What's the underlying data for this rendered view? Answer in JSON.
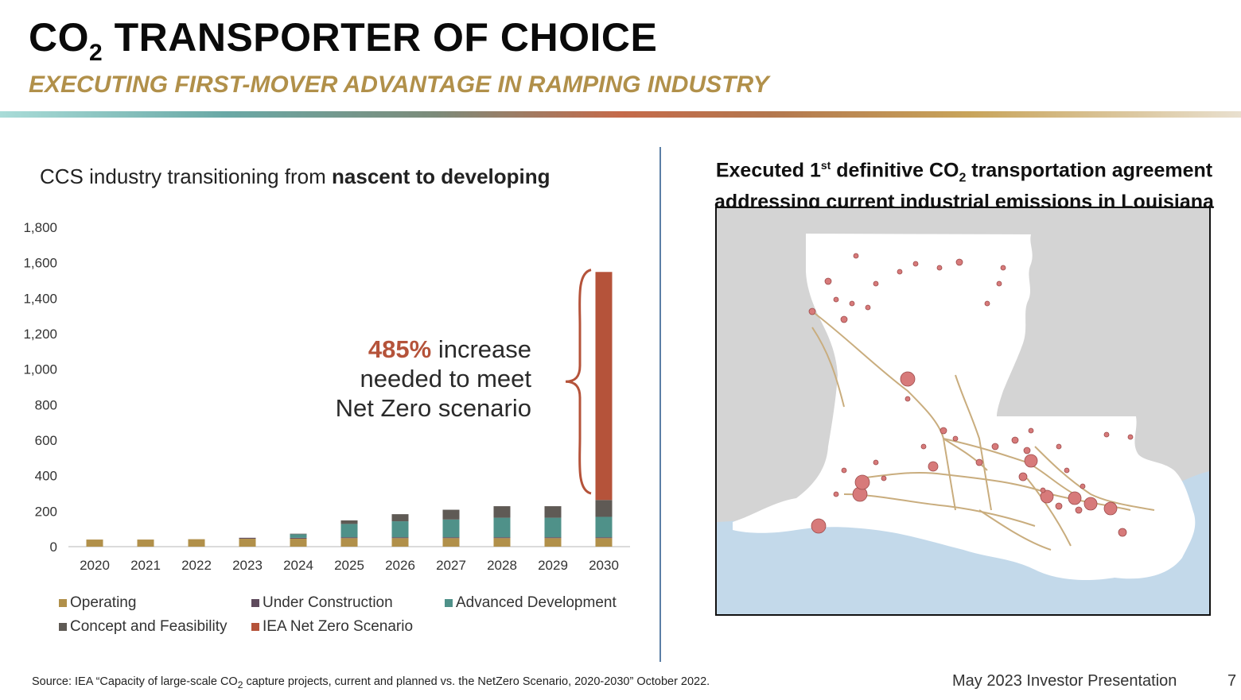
{
  "header": {
    "title_pre": "CO",
    "title_sub": "2",
    "title_post": " TRANSPORTER OF CHOICE",
    "subtitle": "EXECUTING FIRST-MOVER ADVANTAGE IN RAMPING INDUSTRY"
  },
  "left_panel": {
    "heading_plain": "CCS industry transitioning from ",
    "heading_bold": "nascent to developing",
    "callout": {
      "pct": "485%",
      "line1_rest": " increase",
      "line2": "needed to meet",
      "line3": "Net Zero scenario"
    }
  },
  "right_panel": {
    "heading_a": "Executed 1",
    "heading_sup": "st",
    "heading_b": " definitive CO",
    "heading_sub": "2",
    "heading_c": " transportation agreement",
    "heading_line2": "addressing current industrial emissions in Louisiana"
  },
  "chart_data": {
    "type": "bar",
    "stacked": true,
    "categories": [
      "2020",
      "2021",
      "2022",
      "2023",
      "2024",
      "2025",
      "2026",
      "2027",
      "2028",
      "2029",
      "2030"
    ],
    "ylim": [
      0,
      1800
    ],
    "yticks": [
      "0",
      "200",
      "400",
      "600",
      "800",
      "1,000",
      "1,200",
      "1,400",
      "1,600",
      "1,800"
    ],
    "ytick_values": [
      0,
      200,
      400,
      600,
      800,
      1000,
      1200,
      1400,
      1600,
      1800
    ],
    "grid": false,
    "legend_position": "bottom",
    "series": [
      {
        "name": "Operating",
        "color": "#b1904a",
        "values": [
          40,
          40,
          42,
          45,
          45,
          48,
          48,
          48,
          48,
          48,
          48
        ]
      },
      {
        "name": "Under Construction",
        "color": "#5e4a5c",
        "values": [
          0,
          0,
          0,
          5,
          5,
          5,
          5,
          5,
          5,
          5,
          5
        ]
      },
      {
        "name": "Advanced Development",
        "color": "#4f9189",
        "values": [
          0,
          0,
          0,
          0,
          20,
          75,
          90,
          100,
          110,
          110,
          115
        ]
      },
      {
        "name": "Concept and Feasibility",
        "color": "#5f5a55",
        "values": [
          0,
          0,
          0,
          0,
          3,
          20,
          40,
          55,
          65,
          65,
          95
        ]
      },
      {
        "name": "IEA Net Zero Scenario",
        "color": "#b5533a",
        "values": [
          0,
          0,
          0,
          0,
          0,
          0,
          0,
          0,
          0,
          0,
          1285
        ]
      }
    ]
  },
  "legend": [
    {
      "label": "Operating",
      "color": "#b1904a"
    },
    {
      "label": "Under Construction",
      "color": "#5e4a5c"
    },
    {
      "label": "Advanced Development",
      "color": "#4f9189"
    },
    {
      "label": "Concept and Feasibility",
      "color": "#5f5a55"
    },
    {
      "label": "IEA Net Zero Scenario",
      "color": "#b5533a"
    }
  ],
  "map": {
    "land_color": "#ffffff",
    "neighbor_color": "#d4d4d4",
    "water_color": "#c3d9ea",
    "pipeline_color": "#c9ad7e",
    "site_color": "#d77a7a"
  },
  "footer": {
    "source_pre": "Source: IEA “Capacity of large-scale CO",
    "source_sub": "2",
    "source_post": " capture projects, current and planned vs. the NetZero Scenario, 2020-2030” October 2022.",
    "presentation": "May 2023 Investor Presentation",
    "page": "7"
  }
}
